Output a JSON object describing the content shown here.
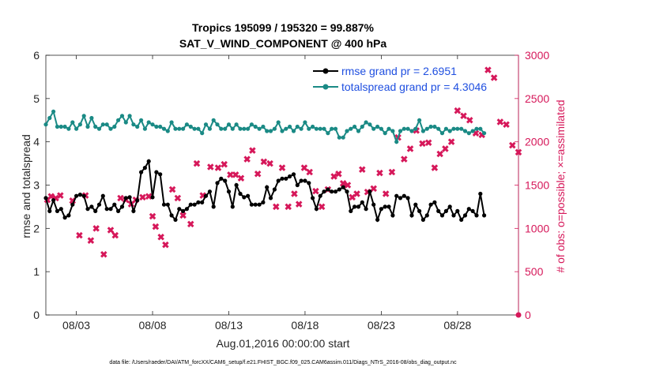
{
  "chart_data": {
    "type": "line",
    "title": "Tropics 195099 / 195320 = 99.887%",
    "subtitle": "SAT_V_WIND_COMPONENT @ 400 hPa",
    "xlabel": "Aug.01,2016 00:00:00 start",
    "ylabel_left": "rmse and totalspread",
    "ylabel_right": "# of obs: o=possible; ×=assimilated",
    "footnote": "data file: /Users/raeder/DAI/ATM_forcXX/CAM6_setup/f.e21.FHIST_BGC.f09_025.CAM6assim.011/Diags_NTrS_2016-08/obs_diag_output.nc",
    "x_ticks": [
      "08/03",
      "08/08",
      "08/13",
      "08/18",
      "08/23",
      "08/28"
    ],
    "x_tick_days": [
      3,
      8,
      13,
      18,
      23,
      28
    ],
    "xlim_days": [
      1.0,
      32.0
    ],
    "ylim_left": [
      0,
      6
    ],
    "y_ticks_left": [
      "0",
      "1",
      "2",
      "3",
      "4",
      "5",
      "6"
    ],
    "ylim_right": [
      0,
      3000
    ],
    "y_ticks_right": [
      "0",
      "500",
      "1000",
      "1500",
      "2000",
      "2500",
      "3000"
    ],
    "series": [
      {
        "name": "rmse",
        "legend": "rmse grand pr = 2.6951",
        "color": "#000000",
        "values": [
          2.7,
          2.4,
          2.65,
          2.4,
          2.45,
          2.25,
          2.3,
          2.55,
          2.75,
          2.78,
          2.75,
          2.45,
          2.5,
          2.4,
          2.55,
          2.75,
          2.45,
          2.45,
          2.55,
          2.4,
          2.5,
          2.7,
          2.72,
          2.4,
          2.65,
          3.3,
          3.4,
          3.55,
          2.72,
          3.3,
          3.25,
          2.55,
          2.55,
          2.3,
          2.2,
          2.45,
          2.4,
          2.45,
          2.55,
          2.55,
          2.6,
          2.6,
          2.75,
          2.85,
          2.5,
          3.05,
          3.15,
          3.1,
          2.85,
          2.5,
          3.0,
          2.8,
          2.72,
          2.75,
          2.55,
          2.55,
          2.55,
          2.6,
          2.95,
          2.7,
          2.9,
          3.1,
          3.15,
          3.15,
          3.2,
          3.25,
          3.0,
          3.1,
          3.1,
          3.05,
          2.7,
          2.45,
          2.75,
          2.85,
          2.9,
          2.85,
          2.85,
          2.9,
          2.95,
          2.85,
          2.4,
          2.5,
          2.5,
          2.6,
          2.45,
          2.85,
          2.55,
          2.2,
          2.45,
          2.5,
          2.5,
          2.3,
          2.75,
          2.7,
          2.75,
          2.7,
          2.3,
          2.55,
          2.4,
          2.2,
          2.3,
          2.55,
          2.6,
          2.4,
          2.3,
          2.4,
          2.5,
          2.3,
          2.4,
          2.2,
          2.3,
          2.45,
          2.4,
          2.3,
          2.8,
          2.3
        ]
      },
      {
        "name": "totalspread",
        "legend": "totalspread grand pr = 4.3046",
        "color": "#1a8a85",
        "values": [
          4.4,
          4.55,
          4.7,
          4.35,
          4.35,
          4.35,
          4.3,
          4.45,
          4.3,
          4.4,
          4.6,
          4.35,
          4.55,
          4.35,
          4.3,
          4.4,
          4.4,
          4.3,
          4.35,
          4.5,
          4.6,
          4.45,
          4.6,
          4.4,
          4.35,
          4.5,
          4.3,
          4.45,
          4.4,
          4.35,
          4.35,
          4.3,
          4.25,
          4.45,
          4.3,
          4.3,
          4.3,
          4.4,
          4.35,
          4.3,
          4.3,
          4.2,
          4.4,
          4.3,
          4.5,
          4.4,
          4.3,
          4.3,
          4.4,
          4.3,
          4.4,
          4.3,
          4.3,
          4.3,
          4.4,
          4.35,
          4.3,
          4.35,
          4.25,
          4.25,
          4.3,
          4.45,
          4.25,
          4.3,
          4.35,
          4.25,
          4.35,
          4.3,
          4.45,
          4.3,
          4.35,
          4.3,
          4.3,
          4.3,
          4.2,
          4.3,
          4.3,
          4.1,
          4.1,
          4.25,
          4.3,
          4.35,
          4.25,
          4.35,
          4.45,
          4.4,
          4.3,
          4.35,
          4.3,
          4.2,
          4.3,
          4.25,
          4.0,
          4.25,
          4.3,
          4.3,
          4.25,
          4.3,
          4.5,
          4.25,
          4.3,
          4.35,
          4.35,
          4.3,
          4.2,
          4.3,
          4.25,
          4.3,
          4.3,
          4.3,
          4.25,
          4.2,
          4.25,
          4.3,
          4.3,
          4.2
        ]
      },
      {
        "name": "obs_assimilated",
        "axis": "right",
        "marker": "x",
        "color": "#d6185a",
        "x_days": [
          1.1,
          1.35,
          1.65,
          1.95,
          2.75,
          3.2,
          3.6,
          3.95,
          4.3,
          4.8,
          5.25,
          5.55,
          5.9,
          6.25,
          6.6,
          6.9,
          7.35,
          7.75,
          8.0,
          8.2,
          8.55,
          8.85,
          9.3,
          9.65,
          10.0,
          10.5,
          10.9,
          11.3,
          11.8,
          12.3,
          12.7,
          13.1,
          13.45,
          13.8,
          14.2,
          14.55,
          14.9,
          15.3,
          15.7,
          16.1,
          16.5,
          16.9,
          17.3,
          17.6,
          17.95,
          18.3,
          18.7,
          19.1,
          19.5,
          19.9,
          20.2,
          20.5,
          20.8,
          21.1,
          21.4,
          21.75,
          22.1,
          22.5,
          22.9,
          23.3,
          23.7,
          24.1,
          24.5,
          24.9,
          25.3,
          25.7,
          26.1,
          26.5,
          26.85,
          27.2,
          27.6,
          28.0,
          28.4,
          28.8,
          29.2,
          29.6,
          30.0,
          30.4,
          30.8,
          31.2,
          31.6,
          32.0
        ],
        "values": [
          1330,
          1370,
          1350,
          1380,
          1320,
          920,
          1380,
          860,
          1000,
          700,
          980,
          920,
          1350,
          1330,
          1280,
          1330,
          1360,
          1370,
          1140,
          1020,
          900,
          810,
          1450,
          1350,
          1150,
          1050,
          1750,
          1380,
          1710,
          1700,
          1740,
          1620,
          1620,
          1580,
          1800,
          1900,
          1630,
          1770,
          1750,
          1250,
          1700,
          1250,
          1400,
          1280,
          1700,
          1650,
          1430,
          1250,
          1450,
          1600,
          1630,
          1520,
          1500,
          1360,
          1400,
          1680,
          1420,
          1460,
          1640,
          1400,
          1650,
          2050,
          1800,
          1920,
          2130,
          1980,
          1990,
          1700,
          1860,
          1920,
          2000,
          2360,
          2300,
          2250,
          2100,
          2080,
          2830,
          2740,
          2230,
          2200,
          1960,
          1880
        ]
      }
    ],
    "x_start_day": 1.0,
    "x_step_days": 0.25
  },
  "obs_possible_zero_label": "0"
}
